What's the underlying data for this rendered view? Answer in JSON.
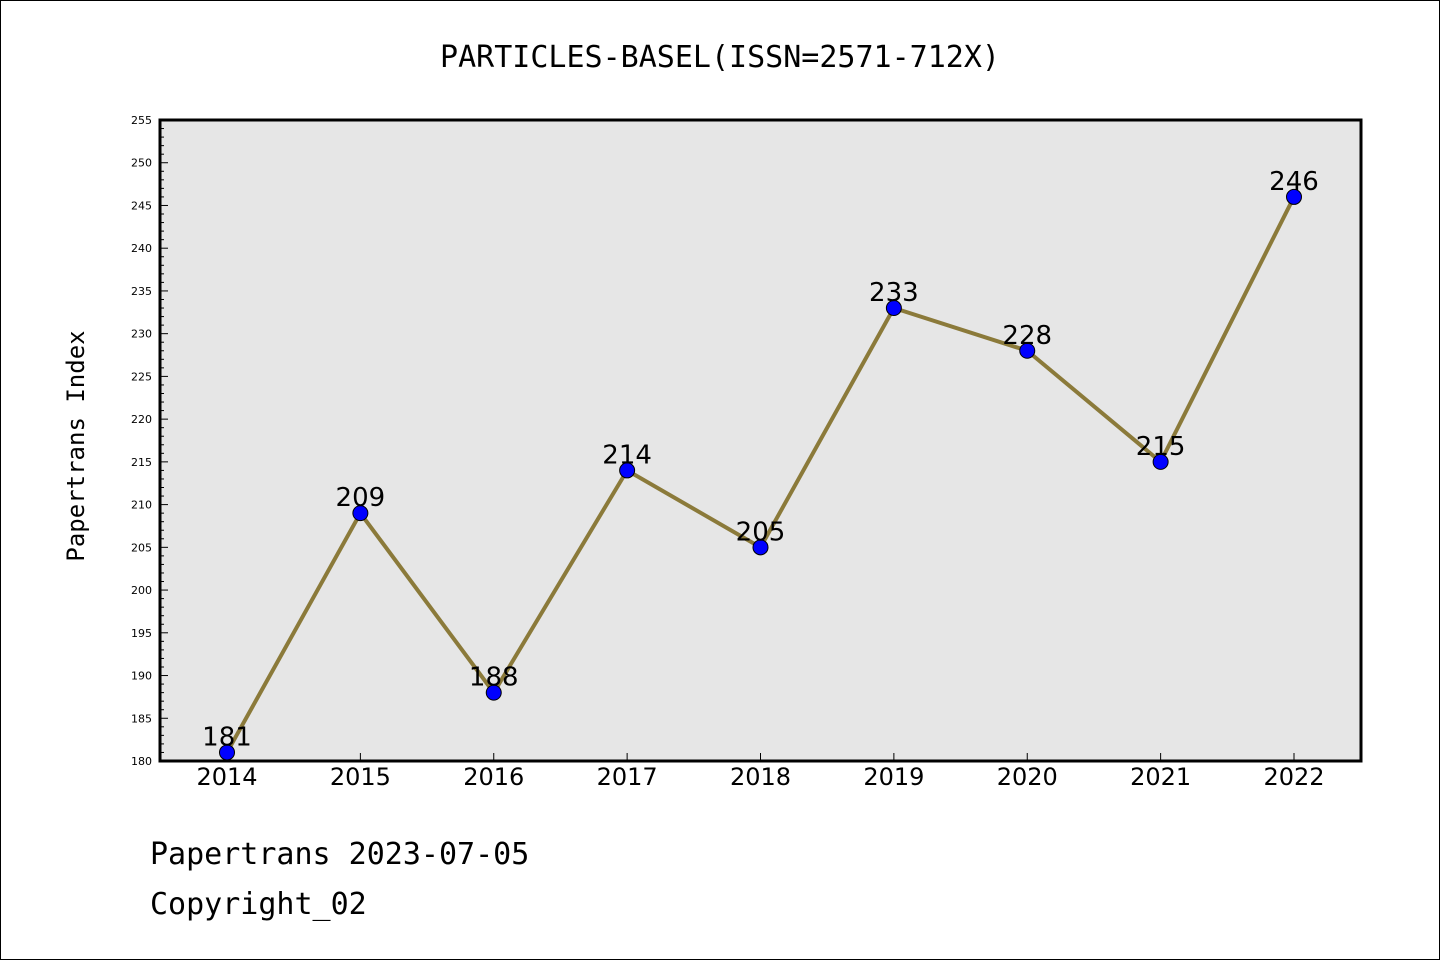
{
  "chart_data": {
    "type": "line",
    "title": "PARTICLES-BASEL(ISSN=2571-712X)",
    "ylabel": "Papertrans Index",
    "xlabel": "",
    "categories": [
      "2014",
      "2015",
      "2016",
      "2017",
      "2018",
      "2019",
      "2020",
      "2021",
      "2022"
    ],
    "values": [
      181,
      209,
      188,
      214,
      205,
      233,
      228,
      215,
      246
    ],
    "data_labels": [
      "181",
      "209",
      "188",
      "214",
      "205",
      "233",
      "228",
      "215",
      "246"
    ],
    "ylim": [
      180,
      255
    ],
    "yticks": [
      "180",
      "185",
      "190",
      "195",
      "200",
      "205",
      "210",
      "215",
      "220",
      "225",
      "230",
      "235",
      "240",
      "245",
      "250",
      "255"
    ],
    "grid": false,
    "legend": "none",
    "colors": {
      "line": "#8b7a3a",
      "marker": "#0000ff",
      "plot_background": "#e6e6e6"
    }
  },
  "footer": {
    "line1": "Papertrans 2023-07-05",
    "line2": "Copyright_02"
  }
}
